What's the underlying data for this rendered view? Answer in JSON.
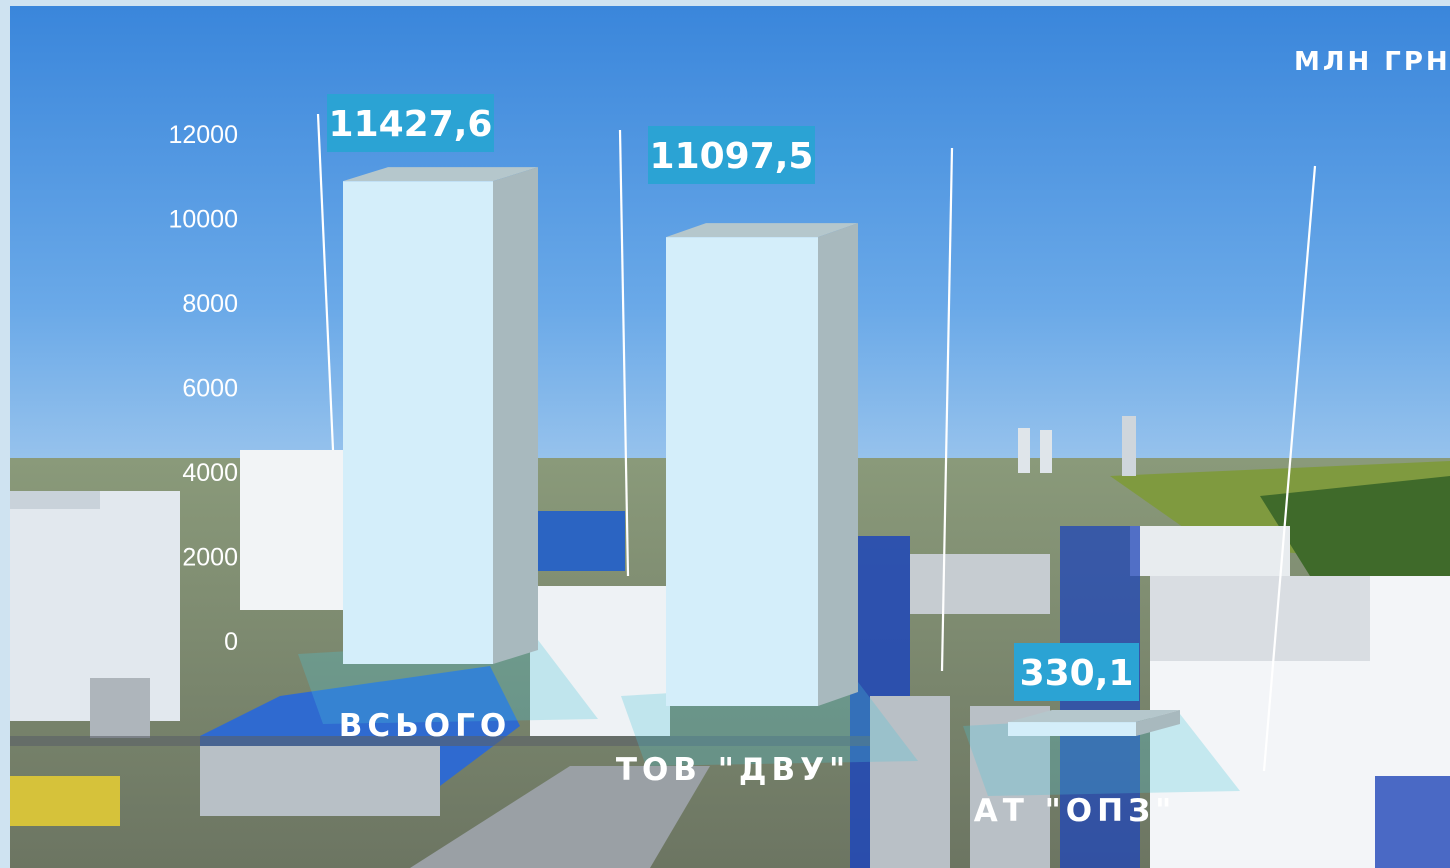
{
  "chart_data": {
    "type": "bar",
    "unit_label": "МЛН ГРН",
    "categories": [
      "ВСЬОГО",
      "ТОВ \"ДВУ\"",
      "АТ \"ОПЗ\""
    ],
    "values": [
      11427.6,
      11097.5,
      330.1
    ],
    "value_labels": [
      "11427,6",
      "11097,5",
      "330,1"
    ],
    "yticks": [
      0,
      2000,
      4000,
      6000,
      8000,
      10000,
      12000
    ],
    "ylim": [
      0,
      12000
    ],
    "grid": false,
    "colors": {
      "bar_front": "#d4eefa",
      "bar_side": "#a8b9be",
      "bar_top": "#b5c7cc",
      "label_bg": "#2ba3d4",
      "text": "#ffffff"
    }
  }
}
